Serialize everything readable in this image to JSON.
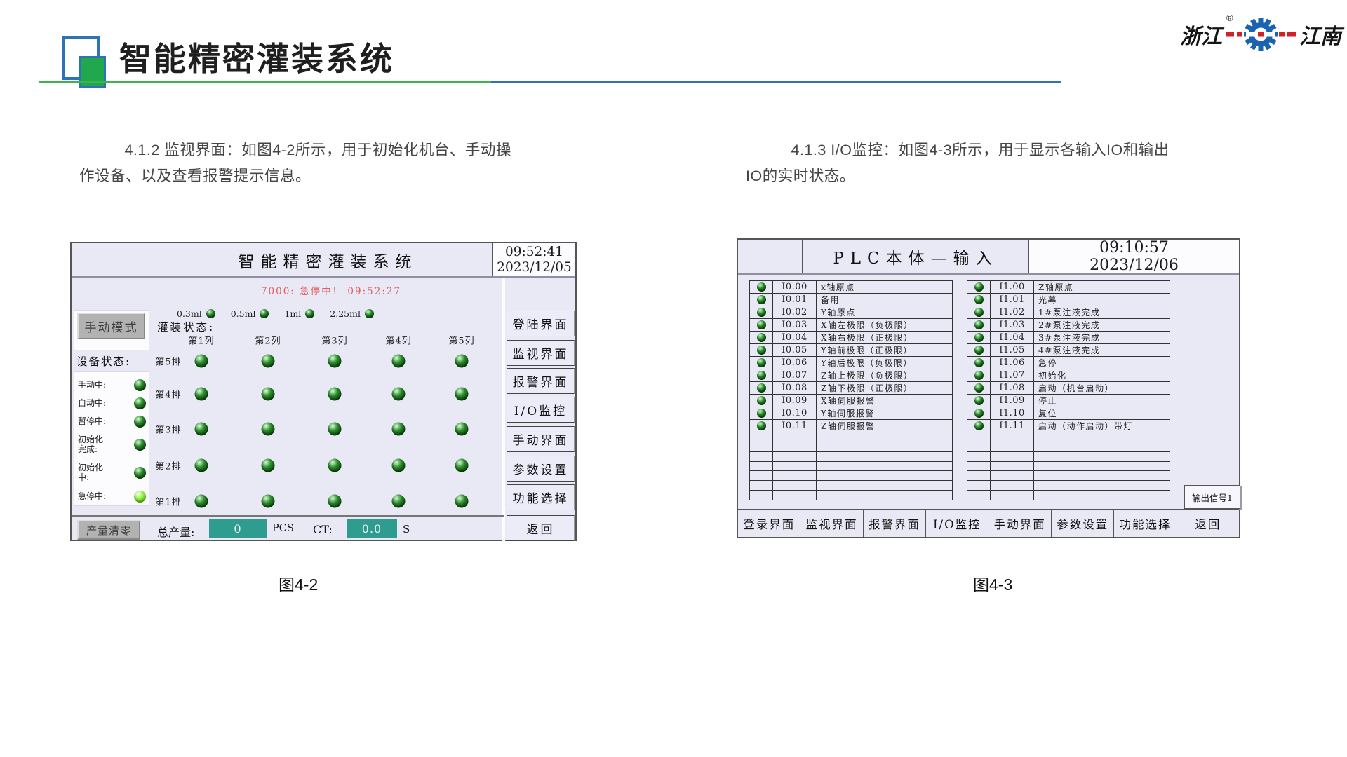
{
  "header": {
    "title": "智能精密灌装系统",
    "brand_left": "浙江",
    "brand_right": "江南",
    "brand_reg": "®"
  },
  "sections": {
    "left_paragraph": "4.1.2 监视界面：如图4-2所示，用于初始化机台、手动操作设备、以及查看报警提示信息。",
    "right_paragraph": "4.1.3 I/O监控：如图4-3所示，用于显示各输入IO和输出IO的实时状态。",
    "left_caption": "图4-2",
    "right_caption": "图4-3"
  },
  "monitor_panel": {
    "title": "智能精密灌装系统",
    "time": "09:52:41",
    "date": "2023/12/05",
    "alarm": "7000: 急停中！  09:52:27",
    "mode_button": "手动模式",
    "ml_indicators": [
      "0.3ml",
      "0.5ml",
      "1ml",
      "2.25ml"
    ],
    "fill_status_label": "灌装状态:",
    "device_status_label": "设备状态:",
    "device_status": [
      {
        "label": "手动中:",
        "active": false
      },
      {
        "label": "自动中:",
        "active": false
      },
      {
        "label": "暂停中:",
        "active": false
      },
      {
        "label": "初始化\n完成:",
        "active": false
      },
      {
        "label": "初始化\n中:",
        "active": false
      },
      {
        "label": "急停中:",
        "active": true
      }
    ],
    "columns": [
      "第1列",
      "第2列",
      "第3列",
      "第4列",
      "第5列"
    ],
    "rows": [
      "第5排",
      "第4排",
      "第3排",
      "第2排",
      "第1排"
    ],
    "menu": [
      "登陆界面",
      "监视界面",
      "报警界面",
      "I/O监控",
      "手动界面",
      "参数设置",
      "功能选择",
      "返回"
    ],
    "clear_button": "产量清零",
    "total_label": "总产量:",
    "total_value": "0",
    "total_unit": "PCS",
    "ct_label": "CT:",
    "ct_value": "0.0",
    "ct_unit": "S"
  },
  "io_panel": {
    "title": "PLC本体—输入",
    "time": "09:10:57",
    "date": "2023/12/06",
    "inputs_left": [
      {
        "addr": "I0.00",
        "desc": "x轴原点"
      },
      {
        "addr": "I0.01",
        "desc": "备用"
      },
      {
        "addr": "I0.02",
        "desc": "Y轴原点"
      },
      {
        "addr": "I0.03",
        "desc": "X轴左极限（负极限）"
      },
      {
        "addr": "I0.04",
        "desc": "X轴右极限（正极限）"
      },
      {
        "addr": "I0.05",
        "desc": "Y轴前极限（正极限）"
      },
      {
        "addr": "I0.06",
        "desc": "Y轴后极限（负极限）"
      },
      {
        "addr": "I0.07",
        "desc": "Z轴上极限（负极限）"
      },
      {
        "addr": "I0.08",
        "desc": "Z轴下极限（正极限）"
      },
      {
        "addr": "I0.09",
        "desc": "X轴伺服报警"
      },
      {
        "addr": "I0.10",
        "desc": "Y轴伺服报警"
      },
      {
        "addr": "I0.11",
        "desc": "Z轴伺服报警"
      }
    ],
    "inputs_right": [
      {
        "addr": "I1.00",
        "desc": "Z轴原点"
      },
      {
        "addr": "I1.01",
        "desc": "光幕"
      },
      {
        "addr": "I1.02",
        "desc": "1#泵注液完成"
      },
      {
        "addr": "I1.03",
        "desc": "2#泵注液完成"
      },
      {
        "addr": "I1.04",
        "desc": "3#泵注液完成"
      },
      {
        "addr": "I1.05",
        "desc": "4#泵注液完成"
      },
      {
        "addr": "I1.06",
        "desc": "急停"
      },
      {
        "addr": "I1.07",
        "desc": "初始化"
      },
      {
        "addr": "I1.08",
        "desc": "启动（机台启动）"
      },
      {
        "addr": "I1.09",
        "desc": "停止"
      },
      {
        "addr": "I1.10",
        "desc": "复位"
      },
      {
        "addr": "I1.11",
        "desc": "启动（动作启动）带灯"
      }
    ],
    "empty_rows": 7,
    "output_button": "输出信号1",
    "menu": [
      "登录界面",
      "监视界面",
      "报警界面",
      "I/O监控",
      "手动界面",
      "参数设置",
      "功能选择",
      "返回"
    ]
  },
  "colors": {
    "accent_green": "#3cb54a",
    "accent_blue": "#2e74b5",
    "hmi_background": "#e9e9f6",
    "alarm_red": "#e05d5d",
    "value_box_teal": "#2f9c90",
    "led_green_dark": "#0b4d0b",
    "led_green_active": "#7ce03a",
    "button_gray": "#b2b2b2",
    "logo_gear_blue": "#1a63b0",
    "logo_dash_red": "#d22027"
  }
}
